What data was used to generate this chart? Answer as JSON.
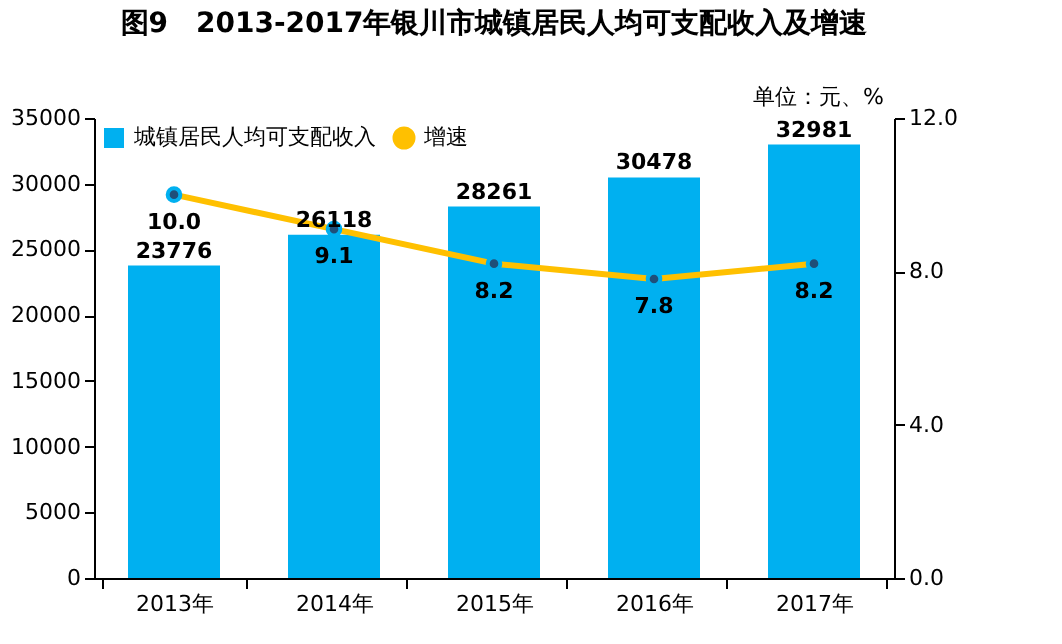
{
  "chart_data": {
    "type": "bar",
    "title": "图9　2013-2017年银川市城镇居民人均可支配收入及增速",
    "categories": [
      "2013年",
      "2014年",
      "2015年",
      "2016年",
      "2017年"
    ],
    "series": [
      {
        "name": "城镇居民人均可支配收入",
        "color": "#00b0f0",
        "values": [
          23776,
          26118,
          28261,
          30478,
          32981
        ]
      },
      {
        "name": "增速",
        "type": "line",
        "axis": "y2",
        "color": "#ffc000",
        "marker": "circle",
        "values": [
          10.0,
          9.1,
          8.2,
          7.8,
          8.2
        ],
        "value_labels": [
          "10.0",
          "9.1",
          "8.2",
          "7.8",
          "8.2"
        ]
      }
    ],
    "ylim": [
      0,
      35000
    ],
    "yticks": [
      0,
      5000,
      10000,
      15000,
      20000,
      25000,
      30000,
      35000
    ],
    "y2lim": [
      0,
      12
    ],
    "y2ticks": [
      {
        "value": 0,
        "label": "0.0"
      },
      {
        "value": 4,
        "label": "4.0"
      },
      {
        "value": 8,
        "label": "8.0"
      },
      {
        "value": 12,
        "label": "12.0"
      }
    ],
    "data_labels": true,
    "grid": false,
    "legend": "top left",
    "annotations": [
      "单位：元、%"
    ]
  }
}
